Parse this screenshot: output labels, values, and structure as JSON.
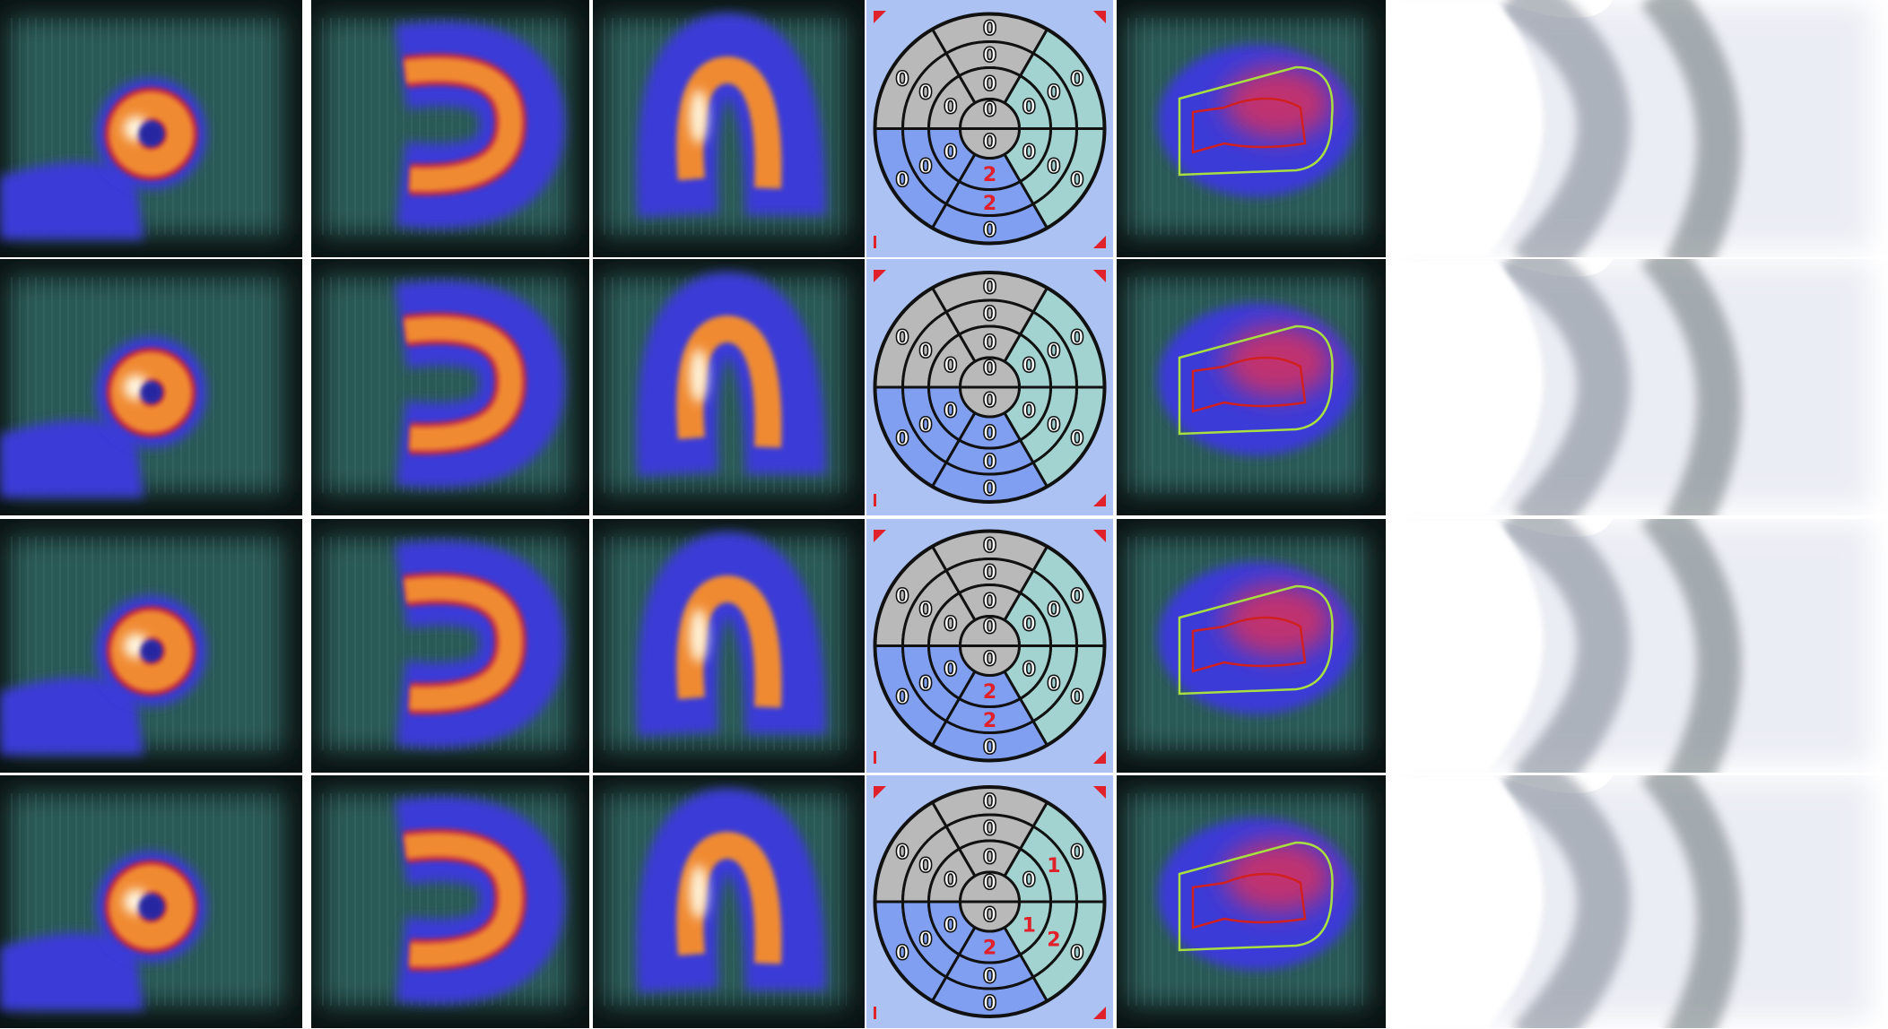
{
  "figure": {
    "rows": 4,
    "columns": [
      "short-axis",
      "vertical-long-axis",
      "horizontal-long-axis",
      "polar-map",
      "contour-overlay",
      "planar-projection"
    ]
  },
  "colors": {
    "polar_background": "#abc2f2",
    "sector_gray": "#b9b9b9",
    "sector_teal": "#a3d3d0",
    "sector_blue": "#809ff0",
    "score_zero": "#111111",
    "score_nonzero": "#e0202a",
    "corner_marker": "#e0202a",
    "perfusion_hot": "#f08a30",
    "perfusion_halo": "#3a3ad8",
    "background_tissue": "#2c5a56",
    "contour_green": "#a8e040",
    "contour_red": "#d02020"
  },
  "polar_maps": [
    {
      "basal": {
        "top": 0,
        "upper_right": 0,
        "lower_right": 0,
        "bottom": 0,
        "lower_left": 0,
        "upper_left": 0
      },
      "mid": {
        "top": 0,
        "upper_right": 0,
        "lower_right": 0,
        "bottom": 2,
        "lower_left": 0,
        "upper_left": 0
      },
      "distal": {
        "top": 0,
        "upper_right": 0,
        "lower_right": 0,
        "bottom": 2,
        "lower_left": 0,
        "upper_left": 0
      },
      "apex": {
        "top": 0,
        "bottom": 0
      }
    },
    {
      "basal": {
        "top": 0,
        "upper_right": 0,
        "lower_right": 0,
        "bottom": 0,
        "lower_left": 0,
        "upper_left": 0
      },
      "mid": {
        "top": 0,
        "upper_right": 0,
        "lower_right": 0,
        "bottom": 0,
        "lower_left": 0,
        "upper_left": 0
      },
      "distal": {
        "top": 0,
        "upper_right": 0,
        "lower_right": 0,
        "bottom": 0,
        "lower_left": 0,
        "upper_left": 0
      },
      "apex": {
        "top": 0,
        "bottom": 0
      }
    },
    {
      "basal": {
        "top": 0,
        "upper_right": 0,
        "lower_right": 0,
        "bottom": 0,
        "lower_left": 0,
        "upper_left": 0
      },
      "mid": {
        "top": 0,
        "upper_right": 0,
        "lower_right": 0,
        "bottom": 2,
        "lower_left": 0,
        "upper_left": 0
      },
      "distal": {
        "top": 0,
        "upper_right": 0,
        "lower_right": 0,
        "bottom": 2,
        "lower_left": 0,
        "upper_left": 0
      },
      "apex": {
        "top": 0,
        "bottom": 0
      }
    },
    {
      "basal": {
        "top": 0,
        "upper_right": 0,
        "lower_right": 0,
        "bottom": 0,
        "lower_left": 0,
        "upper_left": 0
      },
      "mid": {
        "top": 0,
        "upper_right": 1,
        "lower_right": 2,
        "bottom": 0,
        "lower_left": 0,
        "upper_left": 0
      },
      "distal": {
        "top": 0,
        "upper_right": 0,
        "lower_right": 1,
        "bottom": 2,
        "lower_left": 0,
        "upper_left": 0
      },
      "apex": {
        "top": 0,
        "bottom": 0
      }
    }
  ]
}
